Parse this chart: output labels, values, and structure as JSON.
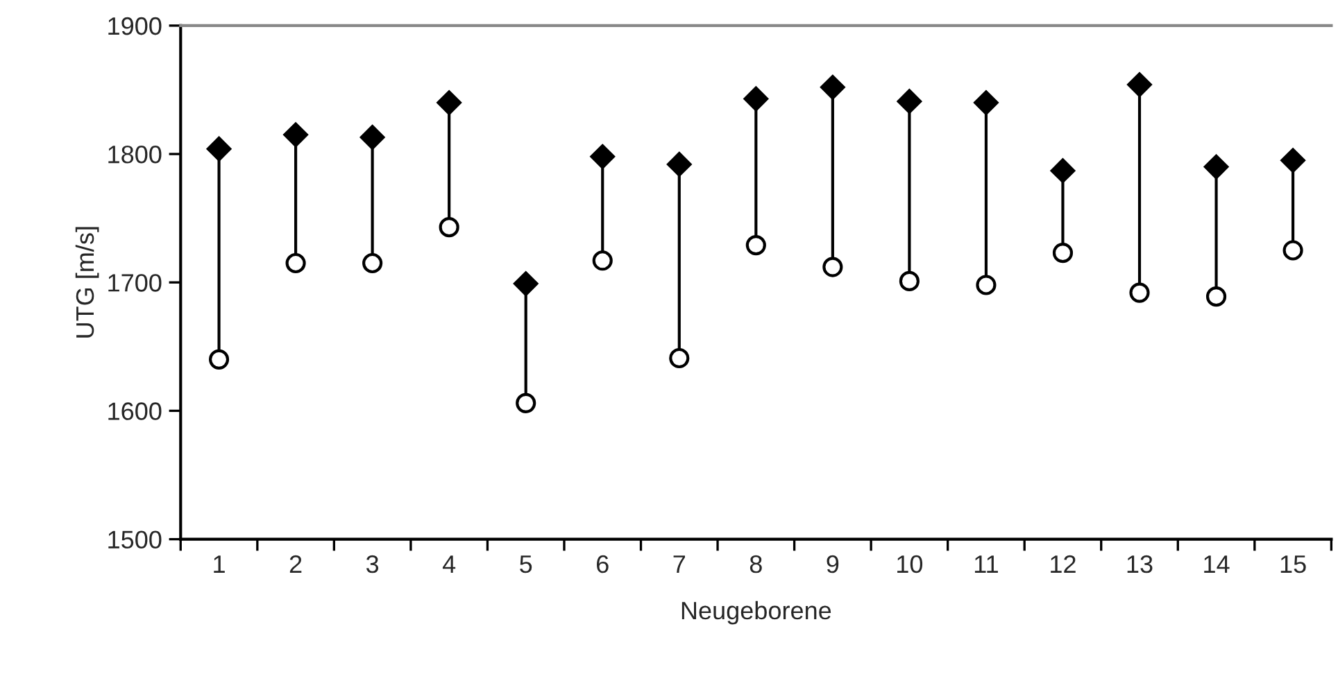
{
  "chart_data": {
    "type": "scatter",
    "xlabel": "Neugeborene",
    "ylabel": "UTG [m/s]",
    "categories": [
      "1",
      "2",
      "3",
      "4",
      "5",
      "6",
      "7",
      "8",
      "9",
      "10",
      "11",
      "12",
      "13",
      "14",
      "15"
    ],
    "series": [
      {
        "color": "#000000",
        "marker": "diamond",
        "values": [
          1804,
          1815,
          1813,
          1840,
          1699,
          1798,
          1792,
          1843,
          1852,
          1841,
          1840,
          1787,
          1854,
          1790,
          1795
        ]
      },
      {
        "color": "#000000",
        "marker": "circle",
        "values": [
          1640,
          1715,
          1715,
          1743,
          1606,
          1717,
          1641,
          1729,
          1712,
          1701,
          1698,
          1723,
          1692,
          1689,
          1725
        ]
      }
    ],
    "ylim": [
      1500,
      1900
    ],
    "yticks": [
      1500,
      1600,
      1700,
      1800,
      1900
    ],
    "grid": false,
    "legend": false
  }
}
